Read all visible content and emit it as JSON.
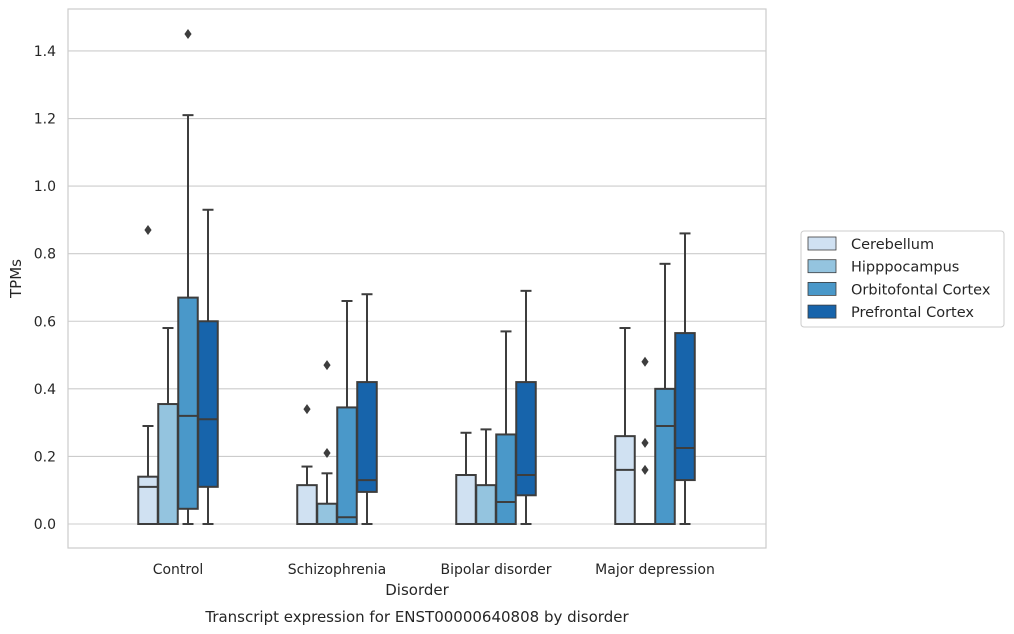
{
  "chart_data": {
    "type": "box",
    "title": "",
    "xlabel": "Disorder",
    "ylabel": "TPMs",
    "caption": "Transcript expression for ENST00000640808 by disorder",
    "categories": [
      "Control",
      "Schizophrenia",
      "Bipolar disorder",
      "Major depression"
    ],
    "ylim": [
      -0.07,
      1.52
    ],
    "yticks": [
      0.0,
      0.2,
      0.4,
      0.6,
      0.8,
      1.0,
      1.2,
      1.4
    ],
    "ytick_labels": [
      "0.0",
      "0.2",
      "0.4",
      "0.6",
      "0.8",
      "1.0",
      "1.2",
      "1.4"
    ],
    "grid": true,
    "legend_position": "right",
    "series": [
      {
        "name": "Cerebellum",
        "color": "#d0e1f2",
        "boxes": [
          {
            "whisker_low": 0.0,
            "q1": 0.0,
            "median": 0.11,
            "q3": 0.14,
            "whisker_high": 0.29,
            "outliers": [
              0.87
            ]
          },
          {
            "whisker_low": 0.0,
            "q1": 0.0,
            "median": 0.0,
            "q3": 0.115,
            "whisker_high": 0.17,
            "outliers": [
              0.34
            ]
          },
          {
            "whisker_low": 0.0,
            "q1": 0.0,
            "median": 0.0,
            "q3": 0.145,
            "whisker_high": 0.27,
            "outliers": []
          },
          {
            "whisker_low": 0.0,
            "q1": 0.0,
            "median": 0.16,
            "q3": 0.26,
            "whisker_high": 0.58,
            "outliers": []
          }
        ]
      },
      {
        "name": "Hipppocampus",
        "color": "#94c4df",
        "boxes": [
          {
            "whisker_low": 0.0,
            "q1": 0.0,
            "median": 0.0,
            "q3": 0.355,
            "whisker_high": 0.58,
            "outliers": []
          },
          {
            "whisker_low": 0.0,
            "q1": 0.0,
            "median": 0.0,
            "q3": 0.06,
            "whisker_high": 0.15,
            "outliers": [
              0.21,
              0.47
            ]
          },
          {
            "whisker_low": 0.0,
            "q1": 0.0,
            "median": 0.0,
            "q3": 0.115,
            "whisker_high": 0.28,
            "outliers": []
          },
          {
            "whisker_low": 0.0,
            "q1": 0.0,
            "median": 0.0,
            "q3": 0.0,
            "whisker_high": 0.0,
            "outliers": [
              0.16,
              0.24,
              0.48
            ]
          }
        ]
      },
      {
        "name": "Orbitofontal Cortex",
        "color": "#4a98c9",
        "boxes": [
          {
            "whisker_low": 0.0,
            "q1": 0.045,
            "median": 0.32,
            "q3": 0.67,
            "whisker_high": 1.21,
            "outliers": [
              1.45
            ]
          },
          {
            "whisker_low": 0.0,
            "q1": 0.0,
            "median": 0.02,
            "q3": 0.345,
            "whisker_high": 0.66,
            "outliers": []
          },
          {
            "whisker_low": 0.0,
            "q1": 0.0,
            "median": 0.065,
            "q3": 0.265,
            "whisker_high": 0.57,
            "outliers": []
          },
          {
            "whisker_low": 0.0,
            "q1": 0.0,
            "median": 0.29,
            "q3": 0.4,
            "whisker_high": 0.77,
            "outliers": []
          }
        ]
      },
      {
        "name": "Prefrontal Cortex",
        "color": "#1764ab",
        "boxes": [
          {
            "whisker_low": 0.0,
            "q1": 0.11,
            "median": 0.31,
            "q3": 0.6,
            "whisker_high": 0.93,
            "outliers": []
          },
          {
            "whisker_low": 0.0,
            "q1": 0.095,
            "median": 0.13,
            "q3": 0.42,
            "whisker_high": 0.68,
            "outliers": []
          },
          {
            "whisker_low": 0.0,
            "q1": 0.085,
            "median": 0.145,
            "q3": 0.42,
            "whisker_high": 0.69,
            "outliers": []
          },
          {
            "whisker_low": 0.0,
            "q1": 0.13,
            "median": 0.225,
            "q3": 0.565,
            "whisker_high": 0.86,
            "outliers": []
          }
        ]
      }
    ]
  },
  "style": {
    "grid_color": "#cccccc",
    "frame_color": "#cccccc",
    "box_edge_color": "#3d3d3d",
    "outlier_color": "#3d3d3d"
  }
}
